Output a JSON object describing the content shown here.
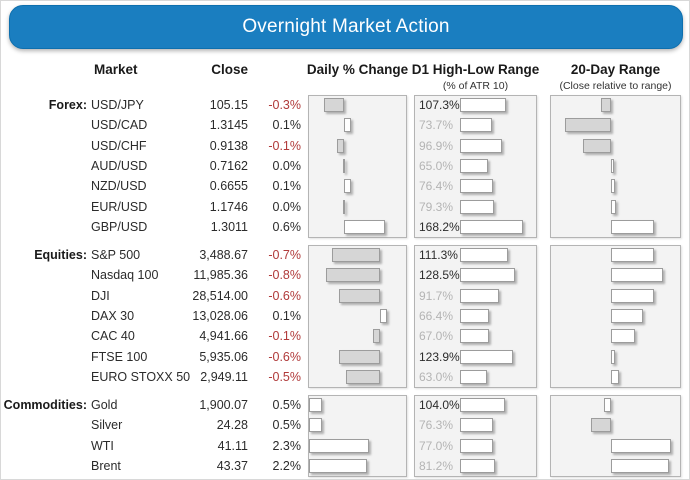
{
  "title": "Overnight Market Action",
  "columns": {
    "market": "Market",
    "close": "Close",
    "daily": "Daily % Change",
    "d1": "D1 High-Low Range",
    "d1_sub": "(% of ATR 10)",
    "d20": "20-Day Range",
    "d20_sub": "(Close relative to range)"
  },
  "colors": {
    "banner_bg": "#1a7ec0",
    "banner_text": "#ffffff",
    "negative_text": "#b03a3a",
    "normal_text": "#2b2b2b",
    "dim_label": "#b4b4b4",
    "panel_bg": "#f3f3f3",
    "panel_border": "#b4b4b4",
    "bar_white": "#ffffff",
    "bar_gray": "#d6d6d6"
  },
  "chart_data": {
    "type": "table",
    "description": "Market dashboard with three embedded horizontal bar charts per section: daily % change (diverging around zero, white=positive, gray=negative), D1 high-low range as % of ATR 10 (left-anchored bars), and 20-day range close-relative-to-range bars around a center axis.",
    "sections": [
      {
        "label": "Forex:",
        "rows": [
          {
            "name": "USD/JPY",
            "close": "105.15",
            "daily": -0.3,
            "daily_label": "-0.3%",
            "atr": 107.3,
            "atr_label": "107.3%",
            "d20": {
              "side": "left",
              "len": 10,
              "fill": "gray"
            }
          },
          {
            "name": "USD/CAD",
            "close": "1.3145",
            "daily": 0.1,
            "daily_label": "0.1%",
            "atr": 73.7,
            "atr_label": "73.7%",
            "d20": {
              "side": "left",
              "len": 46,
              "fill": "gray"
            }
          },
          {
            "name": "USD/CHF",
            "close": "0.9138",
            "daily": -0.1,
            "daily_label": "-0.1%",
            "atr": 96.9,
            "atr_label": "96.9%",
            "d20": {
              "side": "left",
              "len": 28,
              "fill": "gray"
            }
          },
          {
            "name": "AUD/USD",
            "close": "0.7162",
            "daily": 0.0,
            "daily_label": "0.0%",
            "atr": 65.0,
            "atr_label": "65.0%",
            "d20": {
              "side": "right",
              "len": 3,
              "fill": "white"
            }
          },
          {
            "name": "NZD/USD",
            "close": "0.6655",
            "daily": 0.1,
            "daily_label": "0.1%",
            "atr": 76.4,
            "atr_label": "76.4%",
            "d20": {
              "side": "right",
              "len": 4,
              "fill": "white"
            }
          },
          {
            "name": "EUR/USD",
            "close": "1.1746",
            "daily": 0.0,
            "daily_label": "0.0%",
            "atr": 79.3,
            "atr_label": "79.3%",
            "d20": {
              "side": "right",
              "len": 5,
              "fill": "white"
            }
          },
          {
            "name": "GBP/USD",
            "close": "1.3011",
            "daily": 0.6,
            "daily_label": "0.6%",
            "atr": 168.2,
            "atr_label": "168.2%",
            "d20": {
              "side": "right",
              "len": 43,
              "fill": "white"
            }
          }
        ]
      },
      {
        "label": "Equities:",
        "rows": [
          {
            "name": "S&P 500",
            "close": "3,488.67",
            "daily": -0.7,
            "daily_label": "-0.7%",
            "atr": 111.3,
            "atr_label": "111.3%",
            "d20": {
              "side": "right",
              "len": 43,
              "fill": "white"
            }
          },
          {
            "name": "Nasdaq 100",
            "close": "11,985.36",
            "daily": -0.8,
            "daily_label": "-0.8%",
            "atr": 128.5,
            "atr_label": "128.5%",
            "d20": {
              "side": "right",
              "len": 52,
              "fill": "white"
            }
          },
          {
            "name": "DJI",
            "close": "28,514.00",
            "daily": -0.6,
            "daily_label": "-0.6%",
            "atr": 91.7,
            "atr_label": "91.7%",
            "d20": {
              "side": "right",
              "len": 43,
              "fill": "white"
            }
          },
          {
            "name": "DAX 30",
            "close": "13,028.06",
            "daily": 0.1,
            "daily_label": "0.1%",
            "atr": 66.4,
            "atr_label": "66.4%",
            "d20": {
              "side": "right",
              "len": 32,
              "fill": "white"
            }
          },
          {
            "name": "CAC 40",
            "close": "4,941.66",
            "daily": -0.1,
            "daily_label": "-0.1%",
            "atr": 67.0,
            "atr_label": "67.0%",
            "d20": {
              "side": "right",
              "len": 24,
              "fill": "white"
            }
          },
          {
            "name": "FTSE 100",
            "close": "5,935.06",
            "daily": -0.6,
            "daily_label": "-0.6%",
            "atr": 123.9,
            "atr_label": "123.9%",
            "d20": {
              "side": "right",
              "len": 4,
              "fill": "white"
            }
          },
          {
            "name": "EURO STOXX 50",
            "close": "2,949.11",
            "daily": -0.5,
            "daily_label": "-0.5%",
            "atr": 63.0,
            "atr_label": "63.0%",
            "d20": {
              "side": "right",
              "len": 8,
              "fill": "white"
            }
          }
        ]
      },
      {
        "label": "Commodities:",
        "rows": [
          {
            "name": "Gold",
            "close": "1,900.07",
            "daily": 0.5,
            "daily_label": "0.5%",
            "atr": 104.0,
            "atr_label": "104.0%",
            "d20": {
              "side": "left",
              "len": 7,
              "fill": "white"
            }
          },
          {
            "name": "Silver",
            "close": "24.28",
            "daily": 0.5,
            "daily_label": "0.5%",
            "atr": 76.3,
            "atr_label": "76.3%",
            "d20": {
              "side": "left",
              "len": 20,
              "fill": "gray"
            }
          },
          {
            "name": "WTI",
            "close": "41.11",
            "daily": 2.3,
            "daily_label": "2.3%",
            "atr": 77.0,
            "atr_label": "77.0%",
            "d20": {
              "side": "right",
              "len": 60,
              "fill": "white"
            }
          },
          {
            "name": "Brent",
            "close": "43.37",
            "daily": 2.2,
            "daily_label": "2.2%",
            "atr": 81.2,
            "atr_label": "81.2%",
            "d20": {
              "side": "right",
              "len": 58,
              "fill": "white"
            }
          }
        ]
      }
    ]
  }
}
